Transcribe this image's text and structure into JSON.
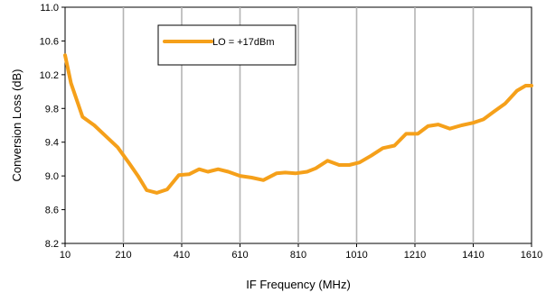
{
  "chart_data": {
    "type": "line",
    "xlabel": "IF Frequency (MHz)",
    "ylabel": "Conversion Loss (dB)",
    "xlim": [
      10,
      1610
    ],
    "ylim": [
      8.2,
      11.0
    ],
    "x_ticks": [
      "10",
      "210",
      "410",
      "610",
      "810",
      "1010",
      "1210",
      "1410",
      "1610"
    ],
    "y_ticks": [
      "8.2",
      "8.6",
      "9.0",
      "9.4",
      "9.8",
      "10.2",
      "10.6",
      "11.0"
    ],
    "x_tick_values": [
      10,
      210,
      410,
      610,
      810,
      1010,
      1210,
      1410,
      1610
    ],
    "y_tick_values": [
      8.2,
      8.6,
      9.0,
      9.4,
      9.8,
      10.2,
      10.6,
      11.0
    ],
    "grid": {
      "vertical": true,
      "horizontal": false
    },
    "legend_position": "top-left",
    "series": [
      {
        "name": "LO = +17dBm",
        "color": "#f5a01a",
        "x": [
          10,
          30,
          70,
          110,
          150,
          190,
          230,
          260,
          290,
          325,
          360,
          400,
          435,
          470,
          500,
          535,
          570,
          610,
          650,
          690,
          735,
          765,
          800,
          840,
          870,
          910,
          950,
          985,
          1020,
          1060,
          1100,
          1140,
          1180,
          1220,
          1255,
          1290,
          1330,
          1370,
          1410,
          1445,
          1480,
          1520,
          1560,
          1590,
          1610
        ],
        "values": [
          10.43,
          10.1,
          9.7,
          9.6,
          9.47,
          9.34,
          9.15,
          9.0,
          8.83,
          8.8,
          8.84,
          9.01,
          9.02,
          9.08,
          9.05,
          9.08,
          9.05,
          9.0,
          8.98,
          8.95,
          9.03,
          9.04,
          9.03,
          9.05,
          9.09,
          9.18,
          9.13,
          9.13,
          9.16,
          9.24,
          9.33,
          9.36,
          9.5,
          9.5,
          9.59,
          9.61,
          9.56,
          9.6,
          9.63,
          9.67,
          9.76,
          9.86,
          10.01,
          10.07,
          10.07
        ]
      }
    ]
  }
}
